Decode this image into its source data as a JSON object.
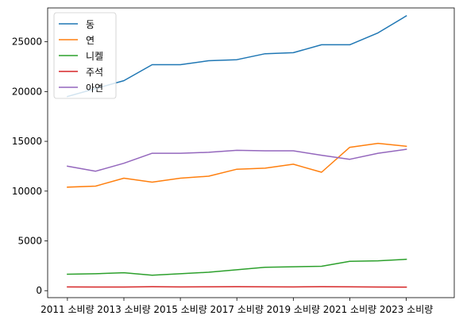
{
  "chart_data": {
    "type": "line",
    "title": "",
    "xlabel": "",
    "ylabel": "",
    "x": [
      2011,
      2012,
      2013,
      2014,
      2015,
      2016,
      2017,
      2018,
      2019,
      2020,
      2021,
      2022,
      2023,
      2024
    ],
    "x_tick_labels": [
      "2011 소비량",
      "2013 소비량",
      "2015 소비량",
      "2017 소비량",
      "2019 소비량",
      "2021 소비량",
      "2023 소비량"
    ],
    "x_tick_values": [
      2011,
      2013,
      2015,
      2017,
      2019,
      2021,
      2023
    ],
    "xlim": [
      2010.3,
      2024.7
    ],
    "ylim": [
      -700,
      28400
    ],
    "y_ticks": [
      0,
      5000,
      10000,
      15000,
      20000,
      25000
    ],
    "grid": false,
    "legend": "top-left",
    "series": [
      {
        "name": "동",
        "color": "#1f77b4",
        "values": [
          19500,
          20300,
          21100,
          22700,
          22700,
          23100,
          23200,
          23800,
          23900,
          24700,
          24700,
          25900,
          27600,
          null
        ]
      },
      {
        "name": "연",
        "color": "#ff7f0e",
        "values": [
          10400,
          10500,
          11300,
          10900,
          11300,
          11500,
          12200,
          12300,
          12700,
          11900,
          14400,
          14800,
          14500,
          null
        ]
      },
      {
        "name": "니켈",
        "color": "#2ca02c",
        "values": [
          1650,
          1700,
          1800,
          1550,
          1700,
          1850,
          2100,
          2350,
          2400,
          2450,
          2950,
          3000,
          3150,
          null
        ]
      },
      {
        "name": "주석",
        "color": "#d62728",
        "values": [
          380,
          370,
          370,
          390,
          380,
          385,
          390,
          385,
          380,
          390,
          385,
          370,
          350,
          null
        ]
      },
      {
        "name": "아연",
        "color": "#9467bd",
        "values": [
          12500,
          12000,
          12800,
          13800,
          13800,
          13900,
          14100,
          14050,
          14050,
          13600,
          13200,
          13800,
          14200,
          null
        ]
      }
    ]
  }
}
